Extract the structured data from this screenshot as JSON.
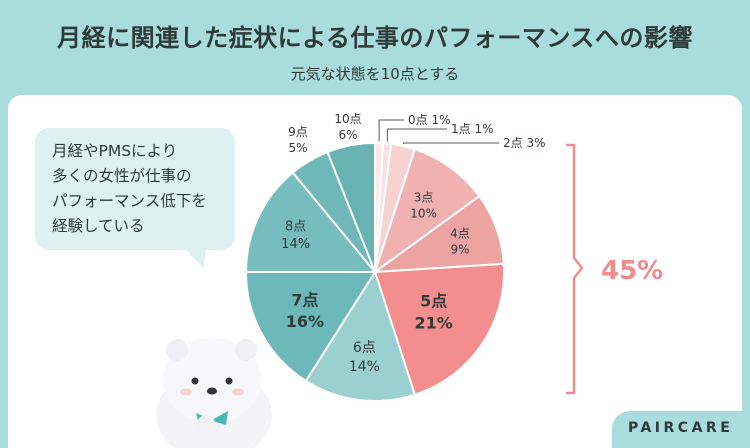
{
  "header": {
    "title": "月経に関連した症状による仕事のパフォーマンスへの影響",
    "subtitle": "元気な状態を10点とする"
  },
  "bubble": {
    "lines": [
      "月経やPMSにより",
      "多くの女性が仕事の",
      "パフォーマンス低下を",
      "経験している"
    ]
  },
  "summary": {
    "value": "45%",
    "color": "#f08c8c"
  },
  "brand": {
    "name": "PAIRCARE"
  },
  "mascot": {
    "icon": "polar-bear-mascot-icon"
  },
  "chart_data": {
    "type": "pie",
    "categories": [
      "0点",
      "1点",
      "2点",
      "3点",
      "4点",
      "5点",
      "6点",
      "7点",
      "8点",
      "9点",
      "10点"
    ],
    "values": [
      1,
      1,
      3,
      10,
      9,
      21,
      14,
      16,
      14,
      5,
      6
    ],
    "labels": [
      "0点 1%",
      "1点 1%",
      "2点 3%",
      "3点 10%",
      "4点 9%",
      "5点 21%",
      "6点 14%",
      "7点 16%",
      "8点 14%",
      "9点 5%",
      "10点 6%"
    ],
    "colors": [
      "#fde9e9",
      "#fbe1e1",
      "#f8d2d2",
      "#f2b1b1",
      "#eea3a3",
      "#f48e8e",
      "#9bd0d0",
      "#6db8b9",
      "#78bdbe",
      "#6fb7b8",
      "#67b3b4"
    ]
  }
}
